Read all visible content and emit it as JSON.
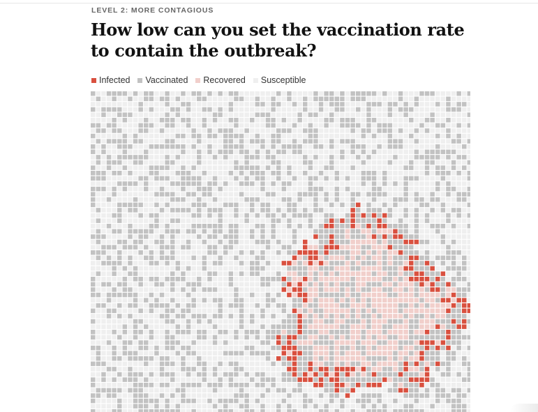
{
  "eyebrow": "LEVEL 2: MORE CONTAGIOUS",
  "headline": "How low can you set the vaccination rate to contain the outbreak?",
  "legend": [
    {
      "label": "Infected",
      "color": "#d9503f"
    },
    {
      "label": "Vaccinated",
      "color": "#c2c2c2"
    },
    {
      "label": "Recovered",
      "color": "#f1cfcb"
    },
    {
      "label": "Susceptible",
      "color": "#efefef"
    }
  ]
}
